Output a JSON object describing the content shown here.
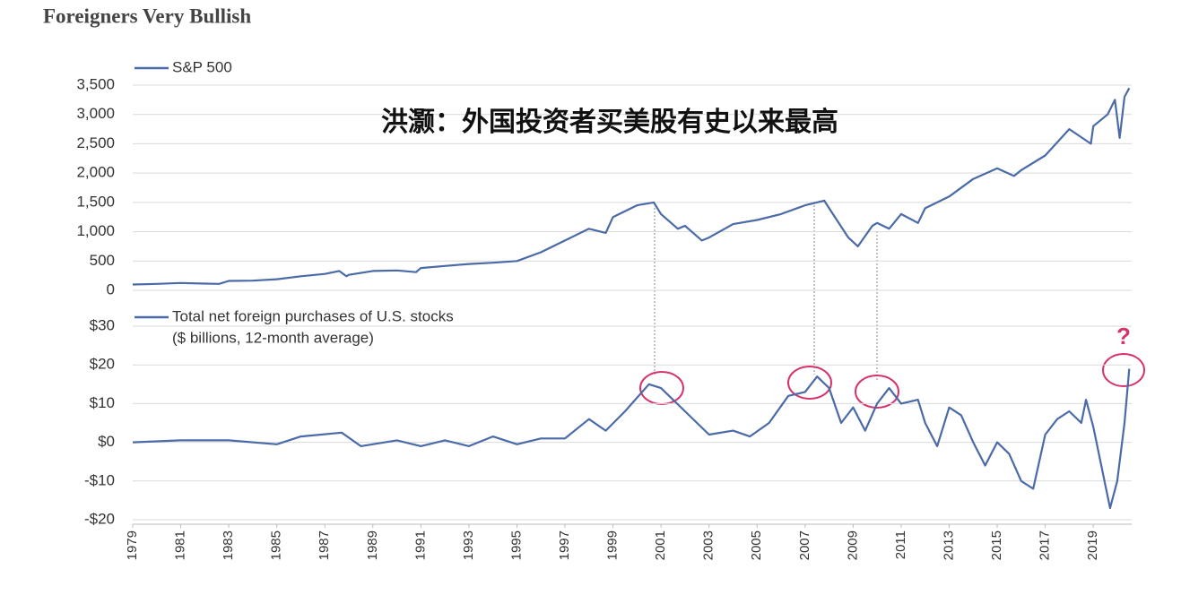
{
  "chart_data": [
    {
      "type": "line",
      "title": "Foreigners Very Bullish",
      "annotation": "洪灏：外国投资者买美股有史以来最高",
      "xlim": [
        1979,
        2020.6
      ],
      "ylim": [
        0,
        3500
      ],
      "yticks": [
        {
          "value": 3500,
          "label": "3,500"
        },
        {
          "value": 3000,
          "label": "3,000"
        },
        {
          "value": 2500,
          "label": "2,500"
        },
        {
          "value": 2000,
          "label": "2,000"
        },
        {
          "value": 1500,
          "label": "1,500"
        },
        {
          "value": 1000,
          "label": "1,000"
        },
        500,
        0
      ],
      "grid": true,
      "x": [
        1979,
        1980,
        1981,
        1982,
        1982.6,
        1983,
        1984,
        1985,
        1986,
        1987,
        1987.6,
        1987.9,
        1988,
        1989,
        1990,
        1990.8,
        1991,
        1992,
        1993,
        1994,
        1995,
        1996,
        1997,
        1998,
        1998.7,
        1999,
        2000,
        2000.7,
        2001,
        2001.7,
        2002,
        2002.7,
        2003,
        2004,
        2005,
        2006,
        2007,
        2007.8,
        2008,
        2008.8,
        2009.2,
        2009.8,
        2010,
        2010.5,
        2011,
        2011.7,
        2012,
        2013,
        2014,
        2015,
        2015.7,
        2016,
        2017,
        2018,
        2018.9,
        2019,
        2019.6,
        2019.9,
        2020.1,
        2020.3,
        2020.5
      ],
      "series": [
        {
          "name": "S&P 500",
          "color": "#4a6aa8",
          "values": [
            100,
            110,
            125,
            115,
            110,
            160,
            165,
            190,
            240,
            280,
            330,
            240,
            265,
            330,
            340,
            310,
            380,
            415,
            450,
            470,
            500,
            650,
            850,
            1050,
            980,
            1250,
            1450,
            1500,
            1300,
            1050,
            1100,
            850,
            900,
            1130,
            1200,
            1300,
            1450,
            1530,
            1400,
            900,
            750,
            1100,
            1150,
            1050,
            1300,
            1150,
            1400,
            1600,
            1900,
            2080,
            1950,
            2050,
            2300,
            2750,
            2500,
            2800,
            3000,
            3250,
            2600,
            3300,
            3450
          ]
        }
      ]
    },
    {
      "type": "line",
      "annotation": "?",
      "legend_note": "($ billions, 12-month average)",
      "xlim": [
        1979,
        2020.6
      ],
      "ylim": [
        -20,
        30
      ],
      "yticks": [
        {
          "value": 30,
          "label": "$30"
        },
        {
          "value": 20,
          "label": "$20"
        },
        {
          "value": 10,
          "label": "$10"
        },
        {
          "value": 0,
          "label": "$0"
        },
        {
          "value": -10,
          "label": "-$10"
        },
        {
          "value": -20,
          "label": "-$20"
        }
      ],
      "xticks": [
        1979,
        1981,
        1983,
        1985,
        1987,
        1989,
        1991,
        1993,
        1995,
        1997,
        1999,
        2001,
        2003,
        2005,
        2007,
        2009,
        2011,
        2013,
        2015,
        2017,
        2019
      ],
      "grid": true,
      "x": [
        1979,
        1981,
        1983,
        1985,
        1986,
        1987.7,
        1988.5,
        1990,
        1991,
        1992,
        1993,
        1994,
        1995,
        1996,
        1997,
        1998,
        1998.7,
        1999.5,
        2000.5,
        2001,
        2002,
        2003,
        2004,
        2004.7,
        2005.5,
        2006.3,
        2007,
        2007.5,
        2008,
        2008.5,
        2009,
        2009.5,
        2010,
        2010.5,
        2011,
        2011.7,
        2012,
        2012.5,
        2013,
        2013.5,
        2014,
        2014.5,
        2015,
        2015.5,
        2016,
        2016.5,
        2017,
        2017.5,
        2018,
        2018.5,
        2018.7,
        2019,
        2019.7,
        2020,
        2020.3,
        2020.5
      ],
      "series": [
        {
          "name": "Total net foreign purchases of U.S. stocks",
          "color": "#4a6aa8",
          "values": [
            0,
            0.5,
            0.5,
            -0.5,
            1.5,
            2.5,
            -1,
            0.5,
            -1,
            0.5,
            -1,
            1.5,
            -0.5,
            1,
            1,
            6,
            3,
            8,
            15,
            14,
            8,
            2,
            3,
            1.5,
            5,
            12,
            13,
            17,
            14,
            5,
            9,
            3,
            10,
            14,
            10,
            11,
            5,
            -1,
            9,
            7,
            0,
            -6,
            0,
            -3,
            -10,
            -12,
            2,
            6,
            8,
            5,
            11,
            4,
            -17,
            -10,
            5,
            19
          ]
        }
      ]
    }
  ]
}
